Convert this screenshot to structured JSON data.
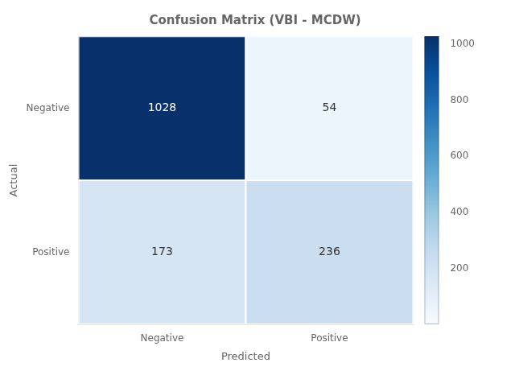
{
  "chart_data": {
    "type": "heatmap",
    "title": "Confusion Matrix (VBI - MCDW)",
    "x_categories": [
      "Negative",
      "Positive"
    ],
    "y_categories": [
      "Negative",
      "Positive"
    ],
    "matrix": [
      [
        1028,
        54
      ],
      [
        173,
        236
      ]
    ],
    "xlabel": "Predicted",
    "ylabel": "Actual",
    "colorbar_lim": [
      0,
      1028
    ],
    "colorbar_ticks": [
      200,
      400,
      600,
      800,
      1000
    ],
    "data_labels": true,
    "grid": false
  }
}
